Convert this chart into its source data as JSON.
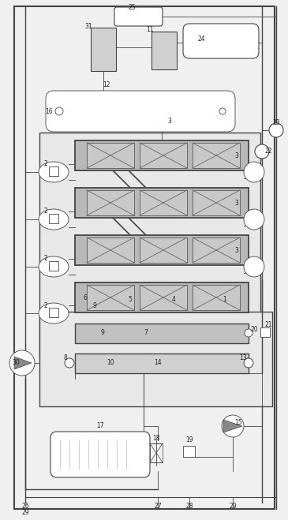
{
  "bg": "#f0f0f0",
  "lc": "#444444",
  "figsize": [
    3.65,
    6.59
  ],
  "dpi": 100,
  "reactor_fc": "#c0c0c0",
  "white": "#ffffff",
  "gray_light": "#d8d8d8",
  "gray_mid": "#aaaaaa"
}
